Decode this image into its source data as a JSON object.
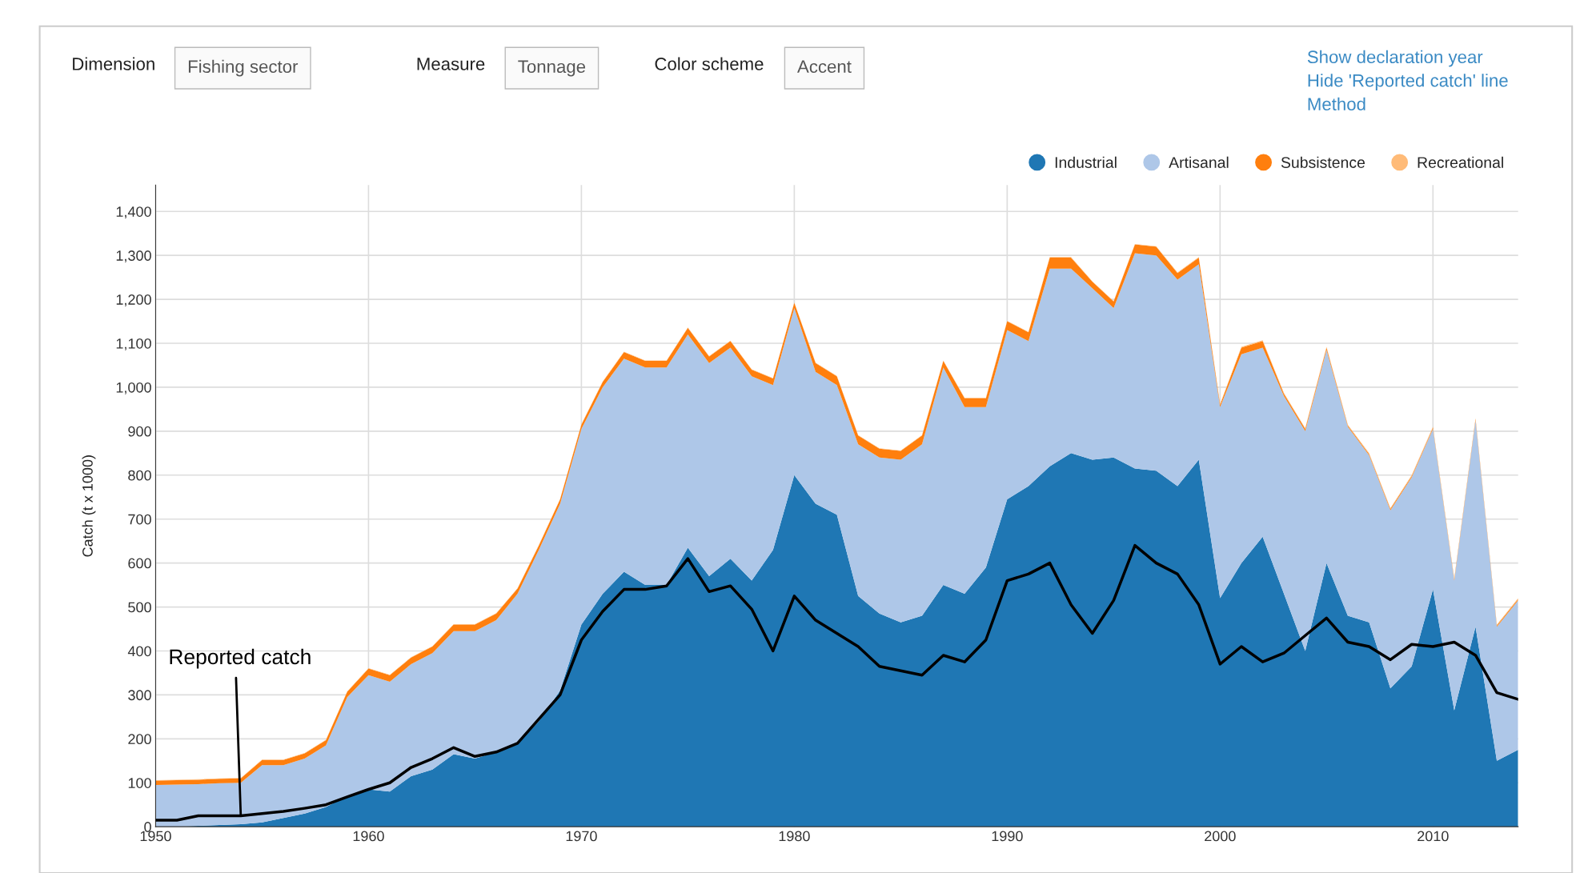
{
  "chart_data": {
    "type": "area",
    "stacked": true,
    "ylabel": "Catch (t x 1000)",
    "x": [
      1950,
      1951,
      1952,
      1953,
      1954,
      1955,
      1956,
      1957,
      1958,
      1959,
      1960,
      1961,
      1962,
      1963,
      1964,
      1965,
      1966,
      1967,
      1968,
      1969,
      1970,
      1971,
      1972,
      1973,
      1974,
      1975,
      1976,
      1977,
      1978,
      1979,
      1980,
      1981,
      1982,
      1983,
      1984,
      1985,
      1986,
      1987,
      1988,
      1989,
      1990,
      1991,
      1992,
      1993,
      1994,
      1995,
      1996,
      1997,
      1998,
      1999,
      2000,
      2001,
      2002,
      2003,
      2004,
      2005,
      2006,
      2007,
      2008,
      2009,
      2010,
      2011,
      2012,
      2013,
      2014
    ],
    "series": [
      {
        "name": "Industrial",
        "color": "#1f77b4",
        "values": [
          0,
          0,
          2,
          4,
          6,
          10,
          20,
          30,
          45,
          70,
          85,
          80,
          115,
          130,
          165,
          155,
          170,
          190,
          240,
          310,
          460,
          530,
          580,
          550,
          550,
          635,
          570,
          610,
          560,
          630,
          800,
          735,
          710,
          525,
          485,
          465,
          480,
          550,
          530,
          590,
          745,
          775,
          820,
          850,
          835,
          840,
          815,
          810,
          775,
          835,
          520,
          600,
          660,
          530,
          400,
          600,
          480,
          465,
          315,
          365,
          540,
          265,
          455,
          150,
          175
        ]
      },
      {
        "name": "Artisanal",
        "color": "#aec7e8",
        "values": [
          95,
          96,
          95,
          95,
          94,
          130,
          120,
          125,
          140,
          225,
          260,
          250,
          255,
          265,
          280,
          290,
          300,
          340,
          390,
          425,
          445,
          470,
          485,
          495,
          495,
          485,
          485,
          480,
          465,
          375,
          380,
          300,
          295,
          345,
          355,
          370,
          390,
          495,
          425,
          365,
          385,
          330,
          450,
          420,
          390,
          340,
          490,
          490,
          470,
          445,
          435,
          475,
          430,
          450,
          500,
          485,
          430,
          380,
          405,
          430,
          365,
          295,
          470,
          305,
          340
        ]
      },
      {
        "name": "Subsistence",
        "color": "#ff7f0e",
        "values": [
          10,
          10,
          10,
          10,
          10,
          12,
          12,
          12,
          12,
          12,
          15,
          15,
          15,
          15,
          15,
          15,
          15,
          12,
          10,
          10,
          10,
          12,
          15,
          15,
          15,
          15,
          15,
          15,
          15,
          15,
          12,
          20,
          20,
          20,
          20,
          20,
          20,
          15,
          20,
          20,
          20,
          20,
          25,
          25,
          15,
          15,
          20,
          20,
          15,
          15,
          5,
          15,
          15,
          5,
          5,
          5,
          3,
          3,
          3,
          3,
          3,
          3,
          3,
          3,
          3
        ]
      },
      {
        "name": "Recreational",
        "color": "#ffbb78",
        "values": [
          1,
          1,
          1,
          1,
          1,
          1,
          1,
          1,
          1,
          1,
          1,
          1,
          1,
          1,
          1,
          1,
          1,
          1,
          1,
          1,
          1,
          1,
          1,
          1,
          1,
          1,
          1,
          1,
          1,
          1,
          1,
          1,
          1,
          1,
          1,
          1,
          1,
          1,
          1,
          1,
          1,
          1,
          1,
          1,
          1,
          1,
          1,
          1,
          1,
          1,
          2,
          2,
          2,
          2,
          2,
          2,
          2,
          2,
          2,
          2,
          2,
          2,
          2,
          2,
          2
        ]
      },
      {
        "type": "line",
        "color": "#000000",
        "values": [
          15,
          15,
          25,
          25,
          25,
          30,
          35,
          42,
          50,
          68,
          85,
          100,
          135,
          155,
          180,
          160,
          170,
          190,
          245,
          300,
          425,
          490,
          540,
          540,
          548,
          610,
          535,
          548,
          495,
          400,
          525,
          470,
          440,
          410,
          365,
          355,
          345,
          390,
          375,
          425,
          560,
          575,
          600,
          505,
          440,
          515,
          640,
          600,
          575,
          505,
          370,
          410,
          375,
          395,
          435,
          475,
          420,
          410,
          380,
          415,
          410,
          420,
          390,
          305,
          290
        ]
      }
    ],
    "xlim": [
      1950,
      2014
    ],
    "xticks": [
      1950,
      1960,
      1970,
      1980,
      1990,
      2000,
      2010
    ],
    "ylim": [
      0,
      1460
    ],
    "yticks": [
      0,
      100,
      200,
      300,
      400,
      500,
      600,
      700,
      800,
      900,
      {
        "value": 1000,
        "label": "1,000"
      },
      {
        "value": 1100,
        "label": "1,100"
      },
      {
        "value": 1200,
        "label": "1,200"
      },
      {
        "value": 1300,
        "label": "1,300"
      },
      {
        "value": 1400,
        "label": "1,400"
      }
    ],
    "grid": true,
    "legend": "top right",
    "annotations": [
      {
        "text": "Reported catch",
        "x": 1954,
        "y": 25
      },
      "Dimension",
      "Fishing sector",
      "Measure",
      "Tonnage",
      "Color scheme",
      "Accent",
      "Show declaration year",
      "Hide 'Reported catch' line",
      "Method"
    ]
  }
}
